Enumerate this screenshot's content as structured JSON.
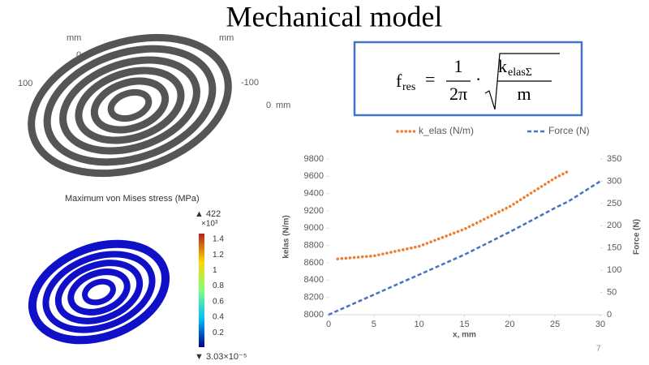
{
  "slide": {
    "title": "Mechanical model",
    "page_number": "7",
    "formula": {
      "lhs": "f",
      "lhs_sub": "res",
      "equals": "=",
      "numerator": "1",
      "denominator": "2π",
      "dot": "·",
      "k": "k",
      "k_sub": "elasΣ",
      "m": "m"
    }
  },
  "geometry_plot": {
    "labels": [
      "mm",
      "mm",
      "0",
      "100",
      "-100",
      "0",
      "mm"
    ]
  },
  "stress_plot": {
    "title": "Maximum von Mises stress (MPa)",
    "max_label": "▲ 422",
    "scale_label": "×10³",
    "colorbar_labels": [
      "1.4",
      "1.2",
      "1",
      "0.8",
      "0.6",
      "0.4",
      "0.2"
    ],
    "min_label": "▼ 3.03×10⁻⁵"
  },
  "chart_data": {
    "type": "line",
    "x_label": "x, mm",
    "y_label": "kelas (N/m)",
    "y2_label": "Force (N)",
    "x": [
      0,
      1,
      5,
      10,
      15,
      20,
      25,
      26.5,
      30
    ],
    "series": [
      {
        "name": "k_elas (N/m)",
        "color": "#ed7d31",
        "values": [
          null,
          8645,
          8680,
          8790,
          8990,
          9250,
          9580,
          9660,
          null
        ]
      },
      {
        "name": "Force (N)",
        "color": "#4472c4",
        "axis": "y2",
        "values": [
          0,
          9,
          45,
          90,
          135,
          186,
          240,
          255,
          300
        ]
      }
    ],
    "xlim": [
      0,
      30
    ],
    "xticks": [
      0,
      5,
      10,
      15,
      20,
      25,
      30
    ],
    "ylim": [
      8000,
      9800
    ],
    "yticks": [
      8000,
      8200,
      8400,
      8600,
      8800,
      9000,
      9200,
      9400,
      9600,
      9800
    ],
    "y2lim": [
      0,
      350
    ],
    "y2ticks": [
      0,
      50,
      100,
      150,
      200,
      250,
      300,
      350
    ],
    "legend": "top"
  }
}
